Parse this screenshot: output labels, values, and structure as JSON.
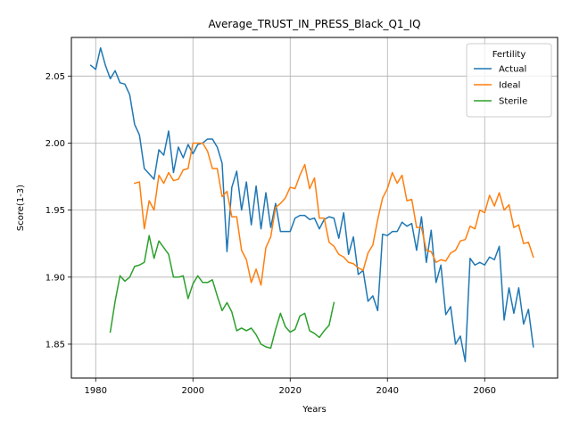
{
  "chart_data": {
    "type": "line",
    "title": "Average_TRUST_IN_PRESS_Black_Q1_IQ",
    "xlabel": "Years",
    "ylabel": "Score(1-3)",
    "xlim": [
      1975,
      2075
    ],
    "ylim": [
      1.8247,
      2.0788
    ],
    "xticks": [
      1980,
      2000,
      2020,
      2040,
      2060
    ],
    "yticks": [
      1.85,
      1.9,
      1.95,
      2.0,
      2.05
    ],
    "ytick_labels": [
      "1.85",
      "1.90",
      "1.95",
      "2.00",
      "2.05"
    ],
    "grid": true,
    "legend": {
      "title": "Fertility",
      "position": "top-right"
    },
    "series": [
      {
        "name": "Actual",
        "color": "#1f77b4",
        "x": [
          1979,
          1980,
          1981,
          1982,
          1983,
          1984,
          1985,
          1986,
          1987,
          1988,
          1989,
          1990,
          1991,
          1992,
          1993,
          1994,
          1995,
          1996,
          1997,
          1998,
          1999,
          2000,
          2001,
          2002,
          2003,
          2004,
          2005,
          2006,
          2007,
          2008,
          2009,
          2010,
          2011,
          2012,
          2013,
          2014,
          2015,
          2016,
          2017,
          2018,
          2019,
          2020,
          2021,
          2022,
          2023,
          2024,
          2025,
          2026,
          2027,
          2028,
          2029,
          2030,
          2031,
          2032,
          2033,
          2034,
          2035,
          2036,
          2037,
          2038,
          2039,
          2040,
          2041,
          2042,
          2043,
          2044,
          2045,
          2046,
          2047,
          2048,
          2049,
          2050,
          2051,
          2052,
          2053,
          2054,
          2055,
          2056,
          2057,
          2058,
          2059,
          2060,
          2061,
          2062,
          2063,
          2064,
          2065,
          2066,
          2067,
          2068,
          2069,
          2070
        ],
        "y": [
          2.058,
          2.055,
          2.071,
          2.058,
          2.048,
          2.054,
          2.045,
          2.044,
          2.036,
          2.014,
          2.006,
          1.981,
          1.977,
          1.973,
          1.995,
          1.991,
          2.009,
          1.978,
          1.997,
          1.989,
          1.999,
          1.992,
          1.999,
          2.0,
          2.003,
          2.003,
          1.997,
          1.985,
          1.919,
          1.967,
          1.979,
          1.95,
          1.971,
          1.939,
          1.968,
          1.936,
          1.963,
          1.937,
          1.955,
          1.934,
          1.934,
          1.934,
          1.944,
          1.946,
          1.946,
          1.943,
          1.944,
          1.936,
          1.943,
          1.945,
          1.944,
          1.929,
          1.948,
          1.917,
          1.93,
          1.902,
          1.905,
          1.882,
          1.886,
          1.875,
          1.932,
          1.931,
          1.934,
          1.934,
          1.941,
          1.938,
          1.94,
          1.92,
          1.945,
          1.911,
          1.935,
          1.896,
          1.909,
          1.872,
          1.878,
          1.85,
          1.856,
          1.837,
          1.914,
          1.909,
          1.911,
          1.909,
          1.915,
          1.913,
          1.923,
          1.868,
          1.892,
          1.873,
          1.892,
          1.865,
          1.876,
          1.848
        ]
      },
      {
        "name": "Ideal",
        "color": "#ff7f0e",
        "x": [
          1988,
          1989,
          1990,
          1991,
          1992,
          1993,
          1994,
          1995,
          1996,
          1997,
          1998,
          1999,
          2000,
          2001,
          2002,
          2003,
          2004,
          2005,
          2006,
          2007,
          2008,
          2009,
          2010,
          2011,
          2012,
          2013,
          2014,
          2015,
          2016,
          2017,
          2018,
          2019,
          2020,
          2021,
          2022,
          2023,
          2024,
          2025,
          2026,
          2027,
          2028,
          2029,
          2030,
          2031,
          2032,
          2033,
          2034,
          2035,
          2036,
          2037,
          2038,
          2039,
          2040,
          2041,
          2042,
          2043,
          2044,
          2045,
          2046,
          2047,
          2048,
          2049,
          2050,
          2051,
          2052,
          2053,
          2054,
          2055,
          2056,
          2057,
          2058,
          2059,
          2060,
          2061,
          2062,
          2063,
          2064,
          2065,
          2066,
          2067,
          2068,
          2069,
          2070
        ],
        "y": [
          1.97,
          1.971,
          1.936,
          1.957,
          1.95,
          1.976,
          1.97,
          1.978,
          1.972,
          1.973,
          1.98,
          1.981,
          2.0,
          2.0,
          2.0,
          1.994,
          1.981,
          1.981,
          1.96,
          1.964,
          1.945,
          1.945,
          1.92,
          1.913,
          1.896,
          1.906,
          1.894,
          1.922,
          1.93,
          1.952,
          1.955,
          1.959,
          1.967,
          1.966,
          1.976,
          1.984,
          1.966,
          1.974,
          1.944,
          1.944,
          1.926,
          1.923,
          1.917,
          1.915,
          1.911,
          1.91,
          1.907,
          1.905,
          1.918,
          1.924,
          1.943,
          1.959,
          1.966,
          1.978,
          1.97,
          1.976,
          1.957,
          1.958,
          1.937,
          1.937,
          1.92,
          1.919,
          1.911,
          1.913,
          1.912,
          1.918,
          1.92,
          1.927,
          1.928,
          1.938,
          1.936,
          1.95,
          1.948,
          1.961,
          1.953,
          1.963,
          1.95,
          1.954,
          1.937,
          1.939,
          1.925,
          1.926,
          1.915
        ]
      },
      {
        "name": "Sterile",
        "color": "#2ca02c",
        "x": [
          1983,
          1984,
          1985,
          1986,
          1987,
          1988,
          1989,
          1990,
          1991,
          1992,
          1993,
          1994,
          1995,
          1996,
          1997,
          1998,
          1999,
          2000,
          2001,
          2002,
          2003,
          2004,
          2005,
          2006,
          2007,
          2008,
          2009,
          2010,
          2011,
          2012,
          2013,
          2014,
          2015,
          2016,
          2017,
          2018,
          2019,
          2020,
          2021,
          2022,
          2023,
          2024,
          2025,
          2026,
          2027,
          2028,
          2029
        ],
        "y": [
          1.859,
          1.882,
          1.901,
          1.897,
          1.9,
          1.908,
          1.909,
          1.911,
          1.931,
          1.914,
          1.927,
          1.922,
          1.917,
          1.9,
          1.9,
          1.901,
          1.884,
          1.895,
          1.901,
          1.896,
          1.896,
          1.898,
          1.886,
          1.875,
          1.881,
          1.874,
          1.86,
          1.862,
          1.86,
          1.862,
          1.857,
          1.85,
          1.848,
          1.847,
          1.861,
          1.873,
          1.863,
          1.859,
          1.861,
          1.871,
          1.873,
          1.86,
          1.858,
          1.855,
          1.86,
          1.864,
          1.881
        ]
      }
    ]
  }
}
